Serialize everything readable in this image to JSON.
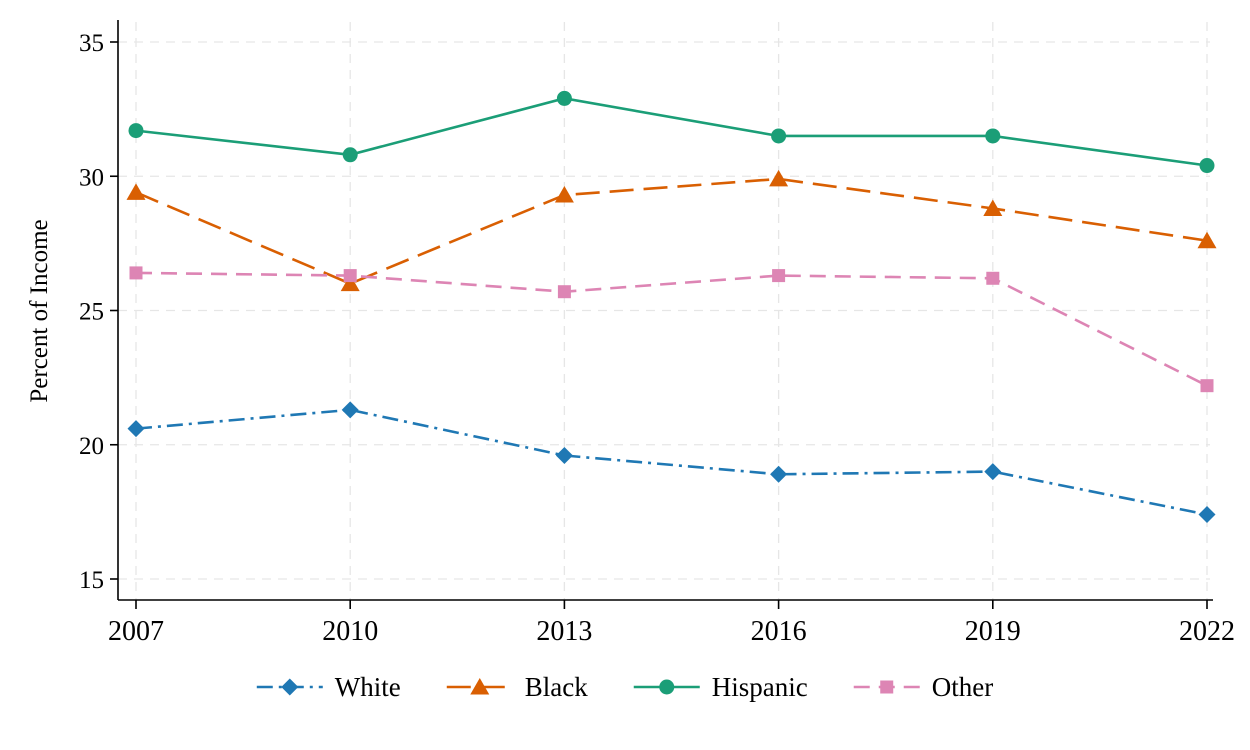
{
  "chart_data": {
    "type": "line",
    "title": "",
    "xlabel": "",
    "ylabel": "Percent of Income",
    "x": [
      2007,
      2010,
      2013,
      2016,
      2019,
      2022
    ],
    "x_tick_labels": [
      "2007",
      "2010",
      "2013",
      "2016",
      "2019",
      "2022"
    ],
    "y_ticks": [
      15,
      20,
      25,
      30,
      35
    ],
    "y_tick_labels": [
      "15",
      "20",
      "25",
      "30",
      "35"
    ],
    "ylim": [
      14.3,
      35.8
    ],
    "grid": true,
    "grid_style": "dashed",
    "grid_color": "#e6e6e6",
    "axis_color": "#000000",
    "legend_position": "bottom",
    "series": [
      {
        "name": "White",
        "color": "#1f78b4",
        "marker": "diamond",
        "line_style": "dashdot",
        "values": [
          20.6,
          21.3,
          19.6,
          18.9,
          19.0,
          17.4
        ]
      },
      {
        "name": "Black",
        "color": "#d95f02",
        "marker": "triangle",
        "line_style": "longdash",
        "values": [
          29.4,
          26.0,
          29.3,
          29.9,
          28.8,
          27.6
        ]
      },
      {
        "name": "Hispanic",
        "color": "#1b9e77",
        "marker": "circle",
        "line_style": "solid",
        "values": [
          31.7,
          30.8,
          32.9,
          31.5,
          31.5,
          30.4
        ]
      },
      {
        "name": "Other",
        "color": "#dd85b4",
        "marker": "square",
        "line_style": "dash",
        "values": [
          26.4,
          26.3,
          25.7,
          26.3,
          26.2,
          22.2
        ]
      }
    ]
  }
}
